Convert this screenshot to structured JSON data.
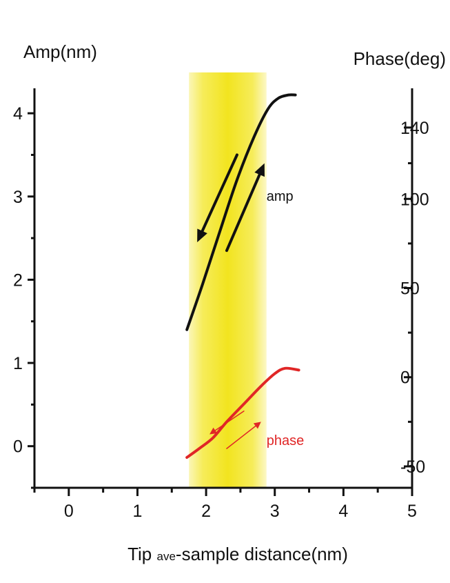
{
  "chart_data": {
    "type": "line",
    "title": "",
    "xlabel": {
      "main": "Tip ",
      "sub": "ave",
      "rest": "-sample distance(nm)"
    },
    "ylabel_left": "Amp(nm)",
    "ylabel_right": "Phase(deg)",
    "xlim": [
      -0.5,
      5
    ],
    "ylim_left": [
      -0.5,
      4.3
    ],
    "ylim_right": [
      -62,
      162
    ],
    "x_ticks": [
      "0",
      "1",
      "2",
      "3",
      "4",
      "5"
    ],
    "y_left_ticks": [
      "0",
      "1",
      "2",
      "3",
      "4"
    ],
    "y_right_ticks": [
      "-50",
      "0",
      "50",
      "100",
      "140"
    ],
    "y_right_tick_values": [
      -50,
      0,
      50,
      100,
      140
    ],
    "highlight_band": {
      "x_range": [
        1.75,
        2.88
      ],
      "color": "#f2e62a"
    },
    "series": [
      {
        "name": "amp",
        "axis": "left",
        "color": "#111111",
        "points": [
          [
            1.72,
            1.4
          ],
          [
            1.95,
            1.95
          ],
          [
            2.2,
            2.58
          ],
          [
            2.45,
            3.2
          ],
          [
            2.7,
            3.72
          ],
          [
            2.9,
            4.05
          ],
          [
            3.05,
            4.18
          ],
          [
            3.2,
            4.22
          ],
          [
            3.3,
            4.22
          ]
        ]
      },
      {
        "name": "phase",
        "axis": "right",
        "color": "#e02626",
        "points": [
          [
            1.72,
            -45
          ],
          [
            1.9,
            -40
          ],
          [
            2.1,
            -34
          ],
          [
            2.3,
            -25
          ],
          [
            2.55,
            -15
          ],
          [
            2.8,
            -5
          ],
          [
            3.0,
            2
          ],
          [
            3.15,
            5
          ],
          [
            3.35,
            4
          ]
        ]
      }
    ],
    "annotations": [
      {
        "text": "amp",
        "x": 2.88,
        "y": 2.95,
        "axis": "left",
        "color": "#111111"
      },
      {
        "text": "phase",
        "x": 2.88,
        "y": -38,
        "axis": "right",
        "color": "#e02626"
      }
    ],
    "arrows": [
      {
        "axis": "left",
        "from": [
          2.45,
          3.5
        ],
        "to": [
          1.87,
          2.45
        ],
        "color": "#111111",
        "width": 4
      },
      {
        "axis": "left",
        "from": [
          2.3,
          2.35
        ],
        "to": [
          2.85,
          3.4
        ],
        "color": "#111111",
        "width": 4
      },
      {
        "axis": "right",
        "from": [
          2.55,
          -19
        ],
        "to": [
          2.05,
          -32
        ],
        "color": "#e02626",
        "width": 1.5
      },
      {
        "axis": "right",
        "from": [
          2.3,
          -40
        ],
        "to": [
          2.8,
          -25
        ],
        "color": "#e02626",
        "width": 1.5
      }
    ]
  }
}
